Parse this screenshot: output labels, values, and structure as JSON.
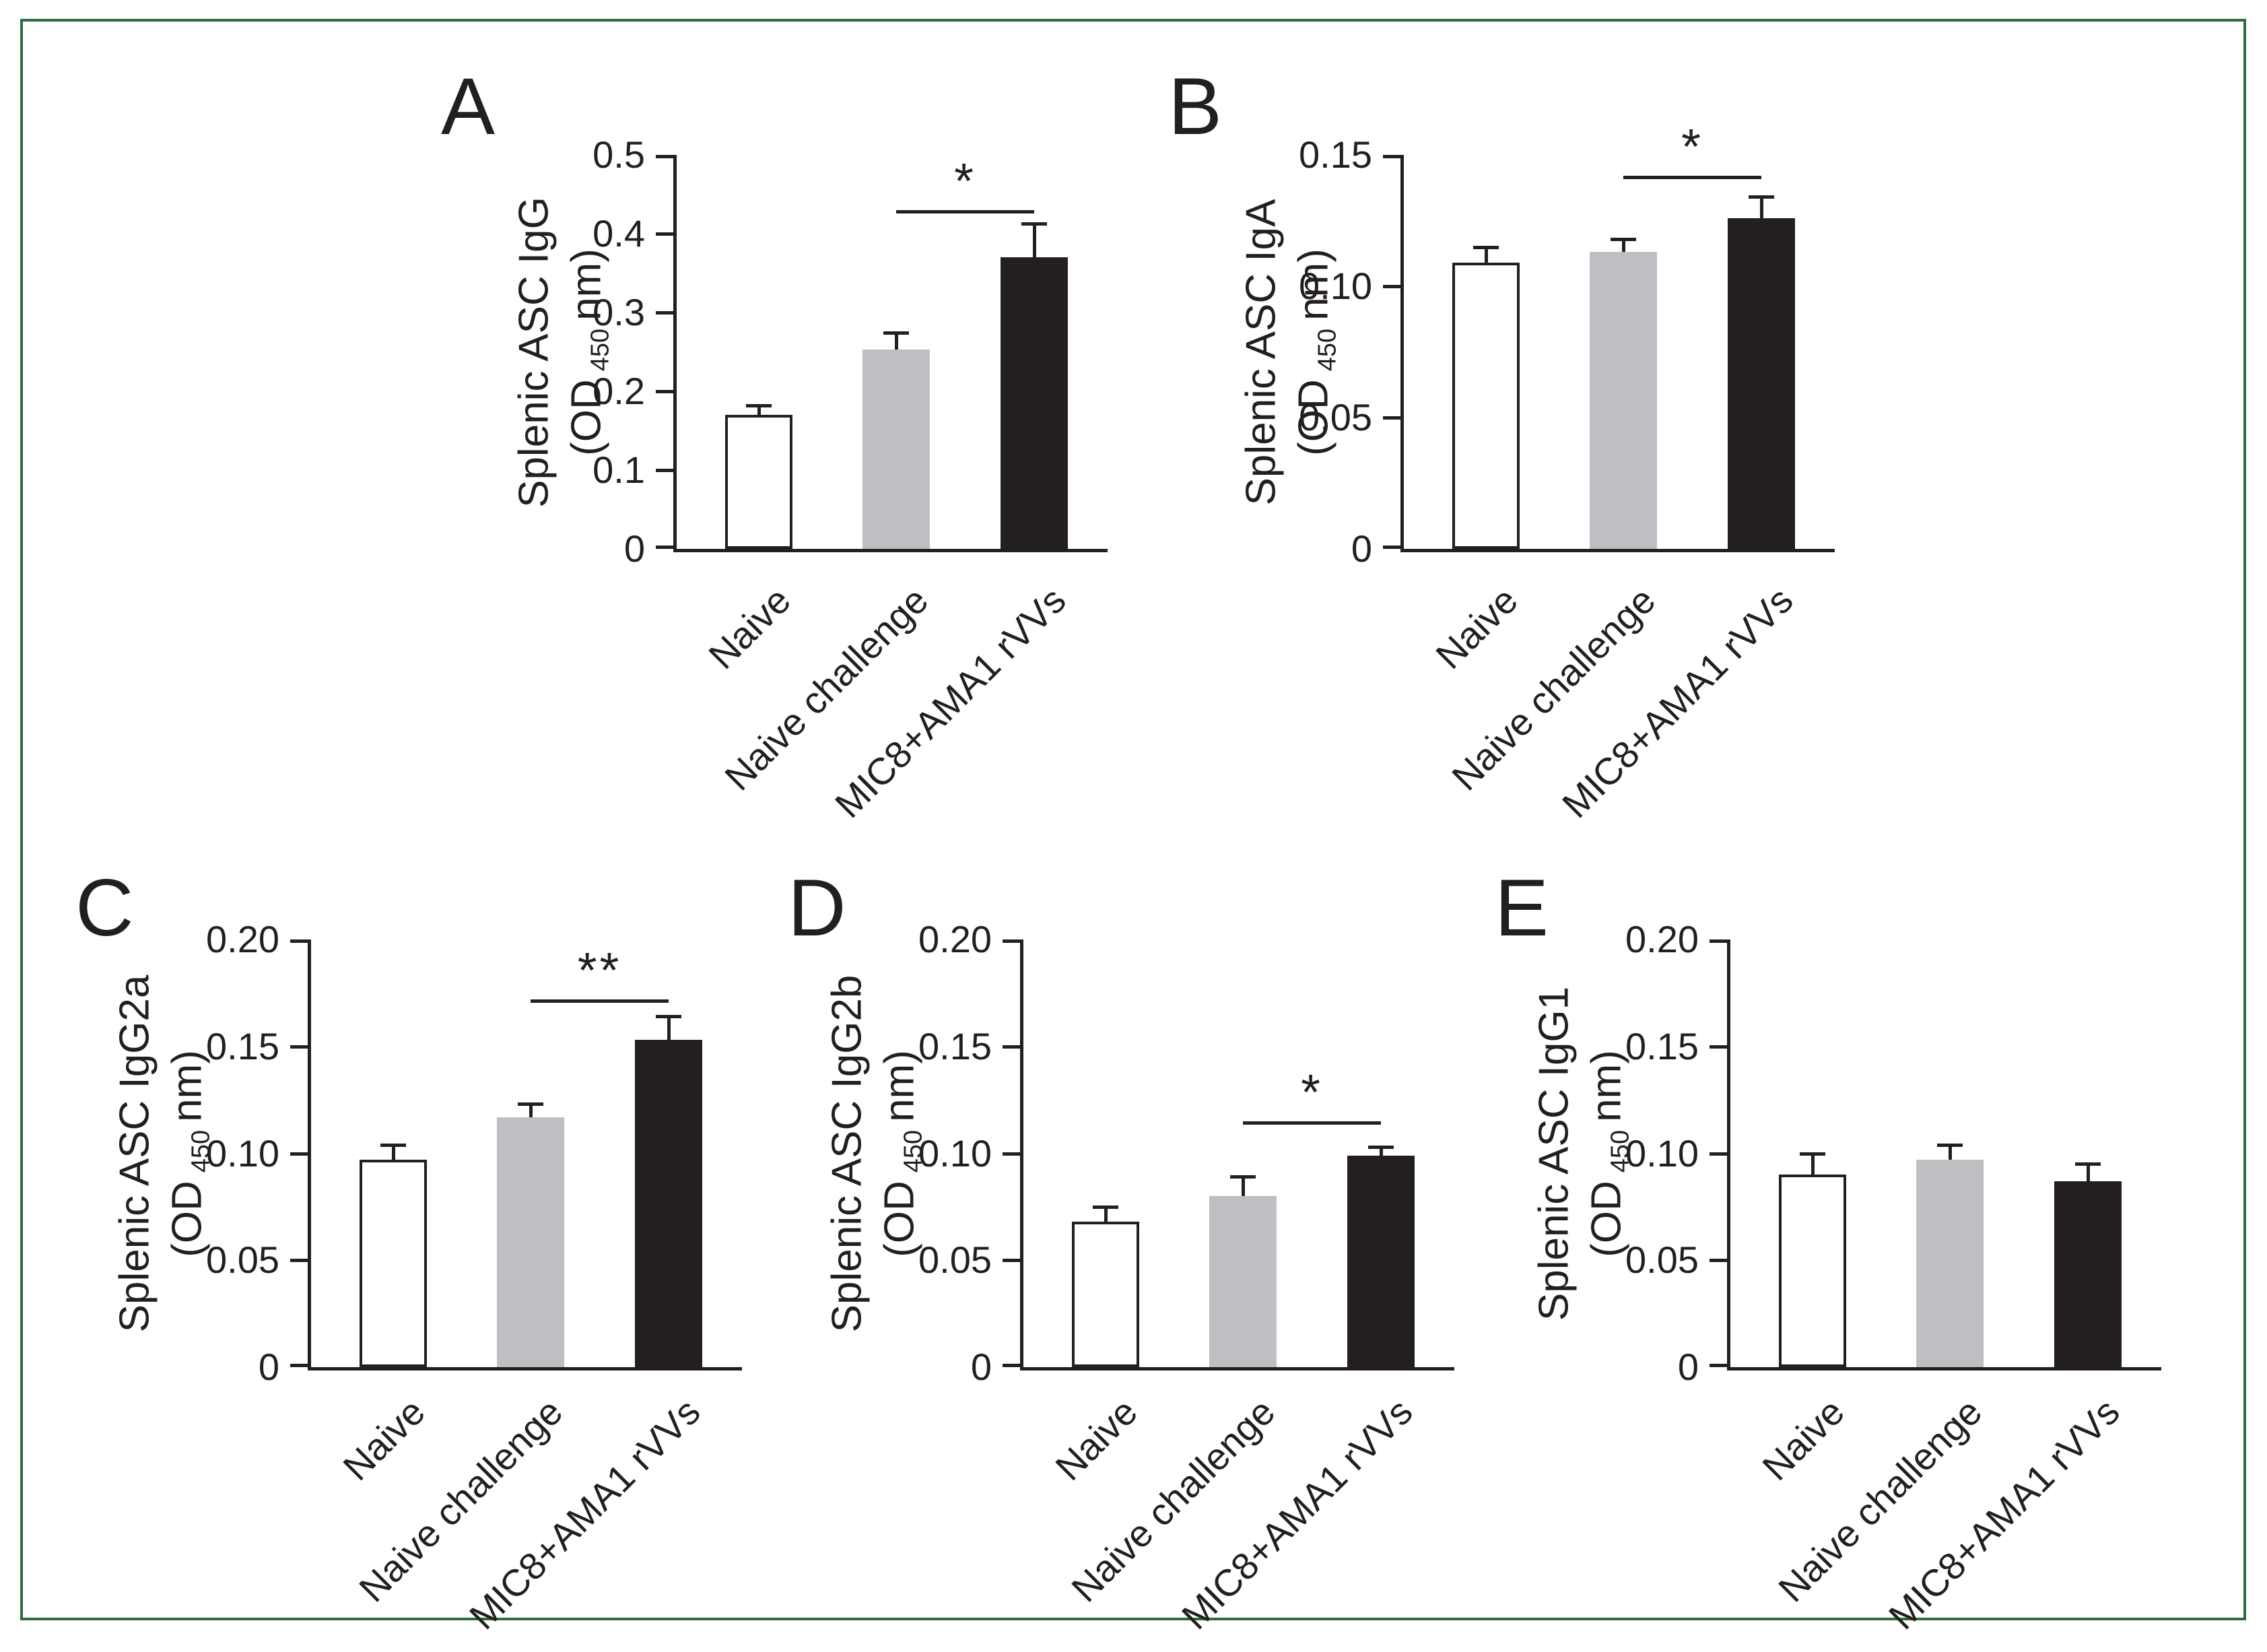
{
  "figure": {
    "border_color": "#2e6b3e",
    "background": "#ffffff",
    "text_color": "#231f20"
  },
  "bar_style": {
    "fills": [
      "#ffffff",
      "#bdbfc3",
      "#231f20"
    ],
    "stroke": "#231f20"
  },
  "categories": [
    "Naive",
    "Naive challenge",
    "MIC8+AMA1 rVVs"
  ],
  "chart_data": [
    {
      "panel": "A",
      "type": "bar",
      "ylabel": "Splenic ASC IgG",
      "od_prefix": "(OD",
      "od_sub": "450",
      "od_suffix": "nm)",
      "categories": [
        "Naive",
        "Naive challenge",
        "MIC8+AMA1 rVVs"
      ],
      "values": [
        0.17,
        0.253,
        0.37
      ],
      "errors": [
        0.012,
        0.021,
        0.043
      ],
      "ylim": [
        0,
        0.5
      ],
      "yticks": [
        0,
        0.1,
        0.2,
        0.3,
        0.4,
        0.5
      ],
      "ytick_labels": [
        "0",
        "0.1",
        "0.2",
        "0.3",
        "0.4",
        "0.5"
      ],
      "significance": {
        "from": 1,
        "to": 2,
        "label": "*",
        "line_y": 0.43
      }
    },
    {
      "panel": "B",
      "type": "bar",
      "ylabel": "Splenic ASC IgA",
      "od_prefix": "(OD",
      "od_sub": "450",
      "od_suffix": "nm)",
      "categories": [
        "Naive",
        "Naive challenge",
        "MIC8+AMA1 rVVs"
      ],
      "values": [
        0.109,
        0.113,
        0.126
      ],
      "errors": [
        0.006,
        0.005,
        0.008
      ],
      "ylim": [
        0,
        0.15
      ],
      "yticks": [
        0,
        0.05,
        0.1,
        0.15
      ],
      "ytick_labels": [
        "0",
        "0.05",
        "0.10",
        "0.15"
      ],
      "significance": {
        "from": 1,
        "to": 2,
        "label": "*",
        "line_y": 0.142
      }
    },
    {
      "panel": "C",
      "type": "bar",
      "ylabel": "Splenic ASC IgG2a",
      "od_prefix": "(OD",
      "od_sub": "450",
      "od_suffix": "nm)",
      "categories": [
        "Naive",
        "Naive challenge",
        "MIC8+AMA1 rVVs"
      ],
      "values": [
        0.097,
        0.117,
        0.153
      ],
      "errors": [
        0.007,
        0.006,
        0.011
      ],
      "ylim": [
        0,
        0.2
      ],
      "yticks": [
        0,
        0.05,
        0.1,
        0.15,
        0.2
      ],
      "ytick_labels": [
        "0",
        "0.05",
        "0.10",
        "0.15",
        "0.20"
      ],
      "significance": {
        "from": 1,
        "to": 2,
        "label": "**",
        "line_y": 0.172
      }
    },
    {
      "panel": "D",
      "type": "bar",
      "ylabel": "Splenic ASC IgG2b",
      "od_prefix": "(OD",
      "od_sub": "450",
      "od_suffix": "nm)",
      "categories": [
        "Naive",
        "Naive challenge",
        "MIC8+AMA1 rVVs"
      ],
      "values": [
        0.068,
        0.08,
        0.099
      ],
      "errors": [
        0.007,
        0.009,
        0.004
      ],
      "ylim": [
        0,
        0.2
      ],
      "yticks": [
        0,
        0.05,
        0.1,
        0.15,
        0.2
      ],
      "ytick_labels": [
        "0",
        "0.05",
        "0.10",
        "0.15",
        "0.20"
      ],
      "significance": {
        "from": 1,
        "to": 2,
        "label": "*",
        "line_y": 0.115
      }
    },
    {
      "panel": "E",
      "type": "bar",
      "ylabel": "Splenic ASC IgG1",
      "od_prefix": "(OD",
      "od_sub": "450",
      "od_suffix": "nm)",
      "categories": [
        "Naive",
        "Naive challenge",
        "MIC8+AMA1 rVVs"
      ],
      "values": [
        0.09,
        0.097,
        0.087
      ],
      "errors": [
        0.01,
        0.007,
        0.008
      ],
      "ylim": [
        0,
        0.2
      ],
      "yticks": [
        0,
        0.05,
        0.1,
        0.15,
        0.2
      ],
      "ytick_labels": [
        "0",
        "0.05",
        "0.10",
        "0.15",
        "0.20"
      ],
      "significance": null
    }
  ]
}
